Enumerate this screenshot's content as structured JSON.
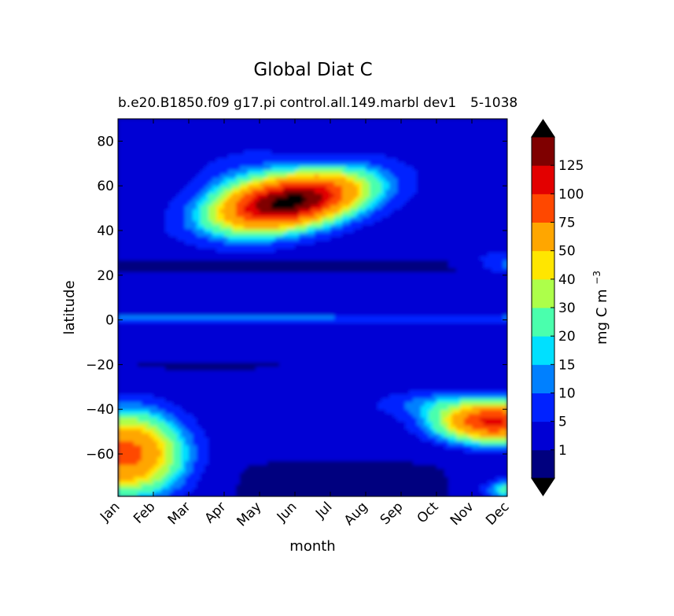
{
  "chart_data": {
    "type": "heatmap",
    "plot_style": "filled contour (latitude vs month)",
    "title": "Global Diat C",
    "subtitle_left": "b.e20.B1850.f09 g17.pi control.all.149.marbl dev1",
    "subtitle_right": "5-1038",
    "xlabel": "month",
    "ylabel": "latitude",
    "x_categories": [
      "Jan",
      "Feb",
      "Mar",
      "Apr",
      "May",
      "Jun",
      "Jul",
      "Aug",
      "Sep",
      "Oct",
      "Nov",
      "Dec"
    ],
    "ylim": [
      -79,
      90
    ],
    "y_ticks": [
      80,
      60,
      40,
      20,
      0,
      -20,
      -40,
      -60
    ],
    "y_tick_labels": [
      "80",
      "60",
      "40",
      "20",
      "0",
      "−20",
      "−40",
      "−60"
    ],
    "colorbar": {
      "label": "mg C m",
      "label_exponent": "−3",
      "extend": "both",
      "levels": [
        0.01,
        1,
        5,
        10,
        15,
        20,
        30,
        40,
        50,
        75,
        100,
        125,
        150
      ],
      "tick_labels": [
        "1",
        "5",
        "10",
        "15",
        "20",
        "30",
        "40",
        "50",
        "75",
        "100",
        "125"
      ],
      "colors": [
        "#00007f",
        "#0000d4",
        "#0022ff",
        "#0080ff",
        "#00e0ff",
        "#4affad",
        "#adff4a",
        "#ffe600",
        "#ffa600",
        "#ff4800",
        "#e30000",
        "#7f0000"
      ],
      "under_color": "#000000",
      "over_color": "#000000"
    },
    "features": [
      {
        "region": "northern spring bloom",
        "months": [
          "Mar",
          "Aug"
        ],
        "lat_range": [
          35,
          70
        ],
        "peak_value": ">150",
        "peak_month": "Jun",
        "peak_lat": 52
      },
      {
        "region": "equatorial band",
        "months": [
          "Jan",
          "Dec"
        ],
        "lat_range": [
          -2,
          2
        ],
        "peak_value": 20
      },
      {
        "region": "southern autumn bloom",
        "months": [
          "Sep",
          "Dec"
        ],
        "lat_range": [
          -60,
          -35
        ],
        "peak_value": 100,
        "peak_month": "Nov",
        "peak_lat": -46
      },
      {
        "region": "southern summer bloom (early year)",
        "months": [
          "Jan",
          "Mar"
        ],
        "lat_range": [
          -78,
          -40
        ],
        "peak_value": 75
      },
      {
        "region": "antarctic winter",
        "months": [
          "Apr",
          "Oct"
        ],
        "lat_range": [
          -79,
          -65
        ],
        "peak_value": 0
      }
    ]
  }
}
